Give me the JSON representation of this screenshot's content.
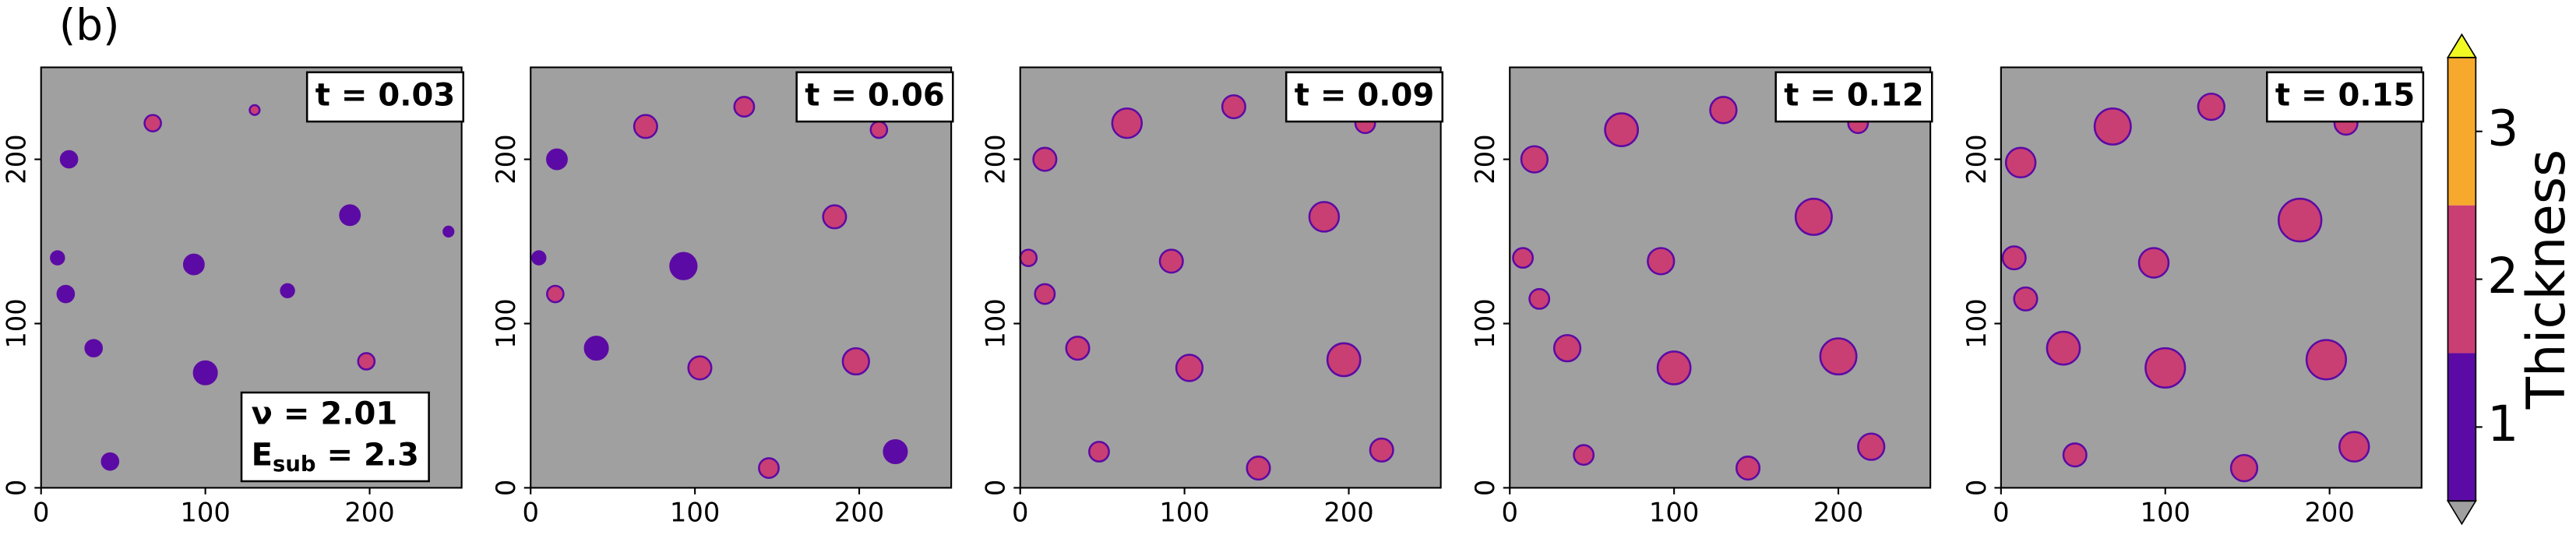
{
  "figure_label": "(b)",
  "colorbar": {
    "label": "Thickness",
    "lim": [
      0.5,
      3.5
    ],
    "ticks": [
      1,
      2,
      3
    ],
    "bounds": [
      0.5,
      1.5,
      2.5,
      3.5
    ],
    "colors": [
      "#5c0aa5",
      "#c93f73",
      "#f6a92c"
    ],
    "under_color": "#a0a0a0",
    "over_color": "#f0f921"
  },
  "chart_data": [
    {
      "type": "islands",
      "title": "t = 0.03",
      "xlim": [
        0,
        256
      ],
      "ylim": [
        0,
        256
      ],
      "xticks": [
        0,
        100,
        200
      ],
      "yticks": [
        0,
        100,
        200
      ],
      "annotation_lines": [
        {
          "text": "ν = 2.01"
        },
        {
          "base": "E",
          "sub": "sub",
          "rest": " = 2.3"
        }
      ],
      "x": [
        68,
        130,
        17,
        188,
        248,
        10,
        93,
        15,
        150,
        32,
        100,
        198,
        42
      ],
      "y": [
        222,
        230,
        200,
        166,
        156,
        140,
        136,
        118,
        120,
        85,
        70,
        77,
        16
      ],
      "sizes": [
        5,
        3,
        5,
        6,
        3,
        4,
        6,
        5,
        4,
        5,
        7,
        5,
        5
      ],
      "levels": [
        2,
        2,
        1,
        1,
        1,
        1,
        1,
        1,
        1,
        1,
        1,
        2,
        1
      ]
    },
    {
      "type": "islands",
      "title": "t = 0.06",
      "xlim": [
        0,
        256
      ],
      "ylim": [
        0,
        256
      ],
      "xticks": [
        0,
        100,
        200
      ],
      "yticks": [
        0,
        100,
        200
      ],
      "x": [
        70,
        130,
        16,
        185,
        5,
        93,
        15,
        40,
        103,
        198,
        145,
        222,
        212
      ],
      "y": [
        220,
        232,
        200,
        165,
        140,
        135,
        118,
        85,
        73,
        77,
        12,
        22,
        218
      ],
      "sizes": [
        7,
        6,
        6,
        7,
        4,
        8,
        5,
        7,
        7,
        8,
        6,
        7,
        5
      ],
      "levels": [
        2,
        2,
        1,
        2,
        1,
        1,
        2,
        1,
        2,
        2,
        2,
        1,
        2
      ]
    },
    {
      "type": "islands",
      "title": "t = 0.09",
      "xlim": [
        0,
        256
      ],
      "ylim": [
        0,
        256
      ],
      "xticks": [
        0,
        100,
        200
      ],
      "yticks": [
        0,
        100,
        200
      ],
      "x": [
        65,
        130,
        15,
        185,
        5,
        92,
        15,
        35,
        103,
        197,
        145,
        220,
        210,
        48
      ],
      "y": [
        222,
        232,
        200,
        165,
        140,
        138,
        118,
        85,
        73,
        78,
        12,
        23,
        222,
        22
      ],
      "sizes": [
        9,
        7,
        7,
        9,
        5,
        7,
        6,
        7,
        8,
        10,
        7,
        7,
        6,
        6
      ],
      "levels": [
        2,
        2,
        2,
        2,
        2,
        2,
        2,
        2,
        2,
        2,
        2,
        2,
        2,
        2
      ]
    },
    {
      "type": "islands",
      "title": "t = 0.12",
      "xlim": [
        0,
        256
      ],
      "ylim": [
        0,
        256
      ],
      "xticks": [
        0,
        100,
        200
      ],
      "yticks": [
        0,
        100,
        200
      ],
      "x": [
        68,
        130,
        15,
        185,
        8,
        92,
        18,
        35,
        100,
        200,
        145,
        220,
        212,
        45
      ],
      "y": [
        218,
        230,
        200,
        165,
        140,
        138,
        115,
        85,
        73,
        80,
        12,
        25,
        222,
        20
      ],
      "sizes": [
        10,
        8,
        8,
        11,
        6,
        8,
        6,
        8,
        10,
        11,
        7,
        8,
        6,
        6
      ],
      "levels": [
        2,
        2,
        2,
        2,
        2,
        2,
        2,
        2,
        2,
        2,
        2,
        2,
        2,
        2
      ]
    },
    {
      "type": "islands",
      "title": "t = 0.15",
      "xlim": [
        0,
        256
      ],
      "ylim": [
        0,
        256
      ],
      "xticks": [
        0,
        100,
        200
      ],
      "yticks": [
        0,
        100,
        200
      ],
      "x": [
        68,
        128,
        12,
        182,
        8,
        93,
        15,
        38,
        100,
        198,
        148,
        215,
        210,
        45
      ],
      "y": [
        220,
        232,
        198,
        163,
        140,
        137,
        115,
        85,
        73,
        78,
        12,
        25,
        222,
        20
      ],
      "sizes": [
        11,
        8,
        9,
        13,
        7,
        9,
        7,
        10,
        12,
        12,
        8,
        9,
        7,
        7
      ],
      "levels": [
        2,
        2,
        2,
        2,
        2,
        2,
        2,
        2,
        2,
        2,
        2,
        2,
        2,
        2
      ]
    }
  ]
}
